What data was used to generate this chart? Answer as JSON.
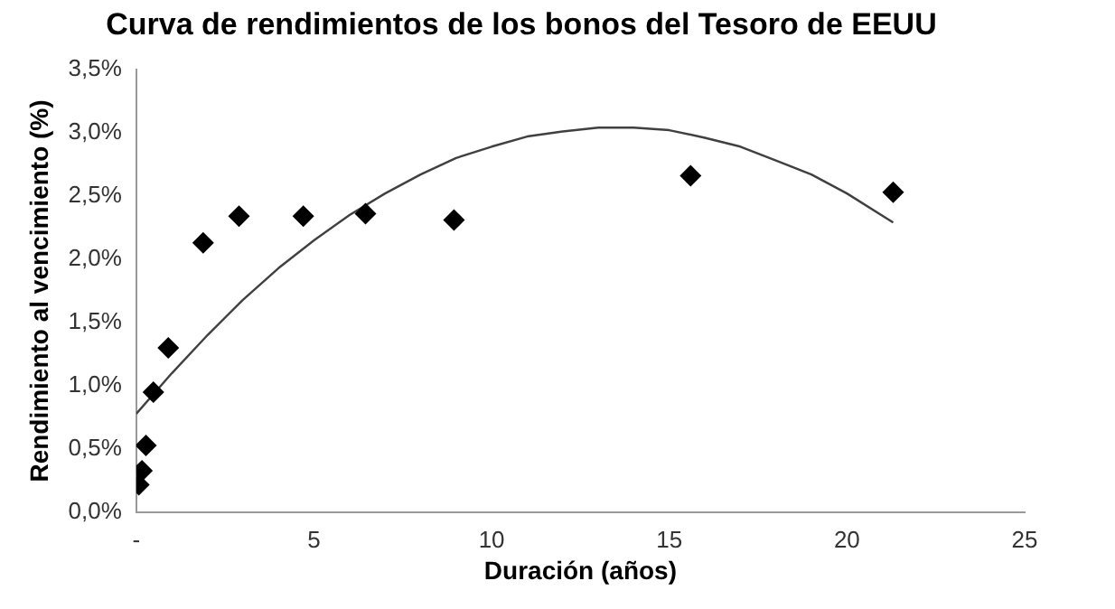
{
  "chart_data": {
    "type": "scatter",
    "title": "Curva de rendimientos de los bonos del Tesoro de EEUU",
    "xlabel": "Duración (años)",
    "ylabel": "Rendimiento al vencimiento (%)",
    "marker": "diamond",
    "grid": false,
    "legend": false,
    "xlim": [
      0,
      25
    ],
    "xticks": [
      {
        "value": 0,
        "label": "-"
      },
      5,
      10,
      15,
      20,
      25
    ],
    "ylim": [
      0,
      3.5
    ],
    "yticks": [
      {
        "value": 0,
        "label": "0,0%"
      },
      {
        "value": 0.5,
        "label": "0,5%"
      },
      {
        "value": 1,
        "label": "1,0%"
      },
      {
        "value": 1.5,
        "label": "1,5%"
      },
      {
        "value": 2,
        "label": "2,0%"
      },
      {
        "value": 2.5,
        "label": "2,5%"
      },
      {
        "value": 3,
        "label": "3,0%"
      },
      {
        "value": 3.5,
        "label": "3,5%"
      }
    ],
    "series": [
      {
        "type": "scatter",
        "color": "#000000",
        "x": [
          0.07,
          0.16,
          0.27,
          0.48,
          0.9,
          1.88,
          2.89,
          4.7,
          6.45,
          8.94,
          15.6,
          21.3
        ],
        "values": [
          0.22,
          0.33,
          0.53,
          0.95,
          1.3,
          2.13,
          2.34,
          2.34,
          2.36,
          2.31,
          2.66,
          2.53
        ]
      },
      {
        "type": "line",
        "color": "#404040",
        "marker": "none",
        "line_style": "solid",
        "x": [
          0,
          1,
          2,
          3,
          4,
          5,
          6,
          7,
          8,
          9,
          10,
          11,
          12,
          13,
          14,
          15,
          16,
          17,
          18,
          19,
          20,
          21.3
        ],
        "values": [
          0.78,
          1.1,
          1.4,
          1.68,
          1.93,
          2.15,
          2.35,
          2.52,
          2.67,
          2.8,
          2.89,
          2.97,
          3.01,
          3.04,
          3.04,
          3.02,
          2.96,
          2.89,
          2.78,
          2.67,
          2.52,
          2.29
        ]
      }
    ]
  }
}
